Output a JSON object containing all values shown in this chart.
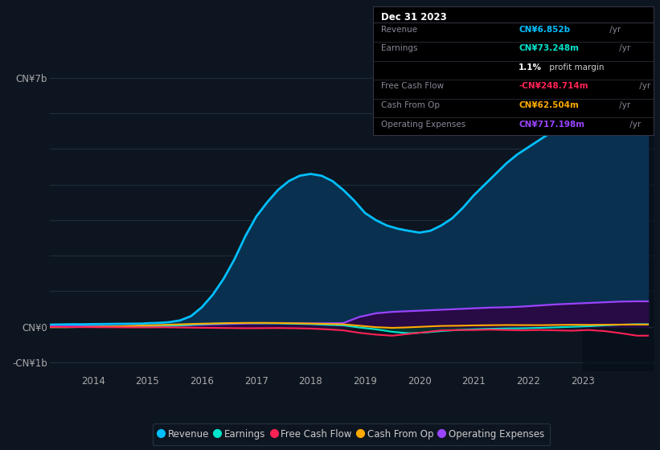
{
  "bg_color": "#0d1520",
  "chart_bg": "#0d1520",
  "grid_color": "#1e2d3d",
  "zero_line_color": "#3a4a5a",
  "ylim": [
    -1250000000.0,
    7800000000.0
  ],
  "ytick_vals": [
    -1000000000.0,
    0,
    7000000000.0
  ],
  "ytick_labels": [
    "-CN¥1b",
    "CN¥0",
    "CN¥7b"
  ],
  "xlim": [
    2013.2,
    2024.3
  ],
  "xticks": [
    2014,
    2015,
    2016,
    2017,
    2018,
    2019,
    2020,
    2021,
    2022,
    2023
  ],
  "revenue_color": "#00bfff",
  "revenue_fill": "#0a3050",
  "earnings_color": "#00e5cc",
  "earnings_fill": "#003830",
  "fcf_color": "#ff2255",
  "cop_color": "#ffaa00",
  "opex_color": "#9944ff",
  "opex_fill": "#2a0844",
  "revenue_x": [
    2013.2,
    2013.4,
    2013.6,
    2013.8,
    2014.0,
    2014.3,
    2014.6,
    2014.9,
    2015.0,
    2015.2,
    2015.4,
    2015.6,
    2015.8,
    2016.0,
    2016.2,
    2016.4,
    2016.6,
    2016.8,
    2017.0,
    2017.2,
    2017.4,
    2017.6,
    2017.8,
    2018.0,
    2018.2,
    2018.4,
    2018.6,
    2018.8,
    2019.0,
    2019.2,
    2019.4,
    2019.6,
    2019.8,
    2020.0,
    2020.2,
    2020.4,
    2020.6,
    2020.8,
    2021.0,
    2021.2,
    2021.4,
    2021.6,
    2021.8,
    2022.0,
    2022.2,
    2022.4,
    2022.6,
    2022.8,
    2023.0,
    2023.2,
    2023.4,
    2023.6,
    2023.8,
    2024.0,
    2024.2
  ],
  "revenue_y": [
    60000000.0,
    65000000.0,
    70000000.0,
    70000000.0,
    75000000.0,
    80000000.0,
    85000000.0,
    90000000.0,
    100000000.0,
    110000000.0,
    130000000.0,
    180000000.0,
    300000000.0,
    550000000.0,
    900000000.0,
    1350000000.0,
    1900000000.0,
    2550000000.0,
    3100000000.0,
    3500000000.0,
    3850000000.0,
    4100000000.0,
    4250000000.0,
    4300000000.0,
    4250000000.0,
    4100000000.0,
    3850000000.0,
    3550000000.0,
    3200000000.0,
    3000000000.0,
    2850000000.0,
    2760000000.0,
    2700000000.0,
    2650000000.0,
    2700000000.0,
    2850000000.0,
    3050000000.0,
    3350000000.0,
    3700000000.0,
    4000000000.0,
    4300000000.0,
    4600000000.0,
    4850000000.0,
    5050000000.0,
    5250000000.0,
    5450000000.0,
    5650000000.0,
    5850000000.0,
    6000000000.0,
    6150000000.0,
    6350000000.0,
    6550000000.0,
    6750000000.0,
    6852000000.0,
    6852000000.0
  ],
  "earnings_x": [
    2013.2,
    2013.5,
    2013.8,
    2014.1,
    2014.4,
    2014.7,
    2015.0,
    2015.3,
    2015.6,
    2015.9,
    2016.2,
    2016.5,
    2016.8,
    2017.1,
    2017.4,
    2017.7,
    2018.0,
    2018.3,
    2018.6,
    2018.9,
    2019.2,
    2019.5,
    2019.8,
    2020.1,
    2020.4,
    2020.7,
    2021.0,
    2021.3,
    2021.6,
    2021.9,
    2022.2,
    2022.5,
    2022.8,
    2023.1,
    2023.4,
    2023.7,
    2024.0,
    2024.2
  ],
  "earnings_y": [
    -10000000.0,
    -10000000.0,
    -5000000.0,
    0.0,
    5000000.0,
    10000000.0,
    15000000.0,
    25000000.0,
    40000000.0,
    65000000.0,
    85000000.0,
    100000000.0,
    105000000.0,
    100000000.0,
    95000000.0,
    85000000.0,
    75000000.0,
    55000000.0,
    40000000.0,
    -20000000.0,
    -70000000.0,
    -140000000.0,
    -180000000.0,
    -160000000.0,
    -120000000.0,
    -90000000.0,
    -70000000.0,
    -55000000.0,
    -45000000.0,
    -40000000.0,
    -30000000.0,
    -15000000.0,
    0.0,
    15000000.0,
    40000000.0,
    60000000.0,
    73000000.0,
    73000000.0
  ],
  "fcf_x": [
    2013.2,
    2013.5,
    2013.8,
    2014.1,
    2014.4,
    2014.7,
    2015.0,
    2015.3,
    2015.6,
    2015.9,
    2016.2,
    2016.5,
    2016.8,
    2017.1,
    2017.4,
    2017.7,
    2018.0,
    2018.3,
    2018.6,
    2018.9,
    2019.2,
    2019.5,
    2019.8,
    2020.1,
    2020.4,
    2020.7,
    2021.0,
    2021.3,
    2021.6,
    2021.9,
    2022.2,
    2022.5,
    2022.8,
    2023.1,
    2023.4,
    2023.7,
    2024.0,
    2024.2
  ],
  "fcf_y": [
    0.0,
    -5000000.0,
    -8000000.0,
    -10000000.0,
    -12000000.0,
    -15000000.0,
    -15000000.0,
    -12000000.0,
    -18000000.0,
    -25000000.0,
    -30000000.0,
    -35000000.0,
    -40000000.0,
    -38000000.0,
    -35000000.0,
    -40000000.0,
    -50000000.0,
    -70000000.0,
    -100000000.0,
    -170000000.0,
    -220000000.0,
    -250000000.0,
    -200000000.0,
    -150000000.0,
    -100000000.0,
    -90000000.0,
    -90000000.0,
    -80000000.0,
    -90000000.0,
    -100000000.0,
    -90000000.0,
    -100000000.0,
    -110000000.0,
    -90000000.0,
    -120000000.0,
    -180000000.0,
    -249000000.0,
    -249000000.0
  ],
  "cop_x": [
    2013.2,
    2013.5,
    2013.8,
    2014.1,
    2014.4,
    2014.7,
    2015.0,
    2015.3,
    2015.6,
    2015.9,
    2016.2,
    2016.5,
    2016.8,
    2017.1,
    2017.4,
    2017.7,
    2018.0,
    2018.3,
    2018.6,
    2018.9,
    2019.2,
    2019.5,
    2019.8,
    2020.1,
    2020.4,
    2020.7,
    2021.0,
    2021.3,
    2021.6,
    2021.9,
    2022.2,
    2022.5,
    2022.8,
    2023.1,
    2023.4,
    2023.7,
    2024.0,
    2024.2
  ],
  "cop_y": [
    -10000000.0,
    -10000000.0,
    -5000000.0,
    2000000.0,
    10000000.0,
    25000000.0,
    40000000.0,
    55000000.0,
    70000000.0,
    85000000.0,
    95000000.0,
    105000000.0,
    110000000.0,
    112000000.0,
    108000000.0,
    100000000.0,
    92000000.0,
    82000000.0,
    70000000.0,
    30000000.0,
    -10000000.0,
    -30000000.0,
    -15000000.0,
    5000000.0,
    25000000.0,
    30000000.0,
    40000000.0,
    45000000.0,
    50000000.0,
    48000000.0,
    46000000.0,
    52000000.0,
    58000000.0,
    55000000.0,
    60000000.0,
    62000000.0,
    63000000.0,
    63000000.0
  ],
  "opex_x": [
    2013.2,
    2013.5,
    2013.8,
    2014.1,
    2014.4,
    2014.7,
    2015.0,
    2015.3,
    2015.6,
    2015.9,
    2016.2,
    2016.5,
    2016.8,
    2017.1,
    2017.4,
    2017.7,
    2018.0,
    2018.3,
    2018.6,
    2018.9,
    2019.2,
    2019.5,
    2019.8,
    2020.1,
    2020.4,
    2020.7,
    2021.0,
    2021.3,
    2021.6,
    2021.9,
    2022.2,
    2022.5,
    2022.8,
    2023.1,
    2023.4,
    2023.7,
    2024.0,
    2024.2
  ],
  "opex_y": [
    8000000.0,
    9000000.0,
    10000000.0,
    12000000.0,
    15000000.0,
    20000000.0,
    25000000.0,
    30000000.0,
    40000000.0,
    55000000.0,
    68000000.0,
    80000000.0,
    92000000.0,
    100000000.0,
    105000000.0,
    100000000.0,
    95000000.0,
    100000000.0,
    105000000.0,
    280000000.0,
    380000000.0,
    420000000.0,
    440000000.0,
    460000000.0,
    480000000.0,
    500000000.0,
    520000000.0,
    540000000.0,
    550000000.0,
    570000000.0,
    600000000.0,
    630000000.0,
    650000000.0,
    670000000.0,
    690000000.0,
    710000000.0,
    717000000.0,
    717000000.0
  ],
  "tooltip_bg": "#000000",
  "tooltip_border": "#333344",
  "dark_region_x": 2023.0,
  "dark_region_color": "#060e18",
  "legend_bg": "#0d1520",
  "legend_border": "#2a3a4a"
}
